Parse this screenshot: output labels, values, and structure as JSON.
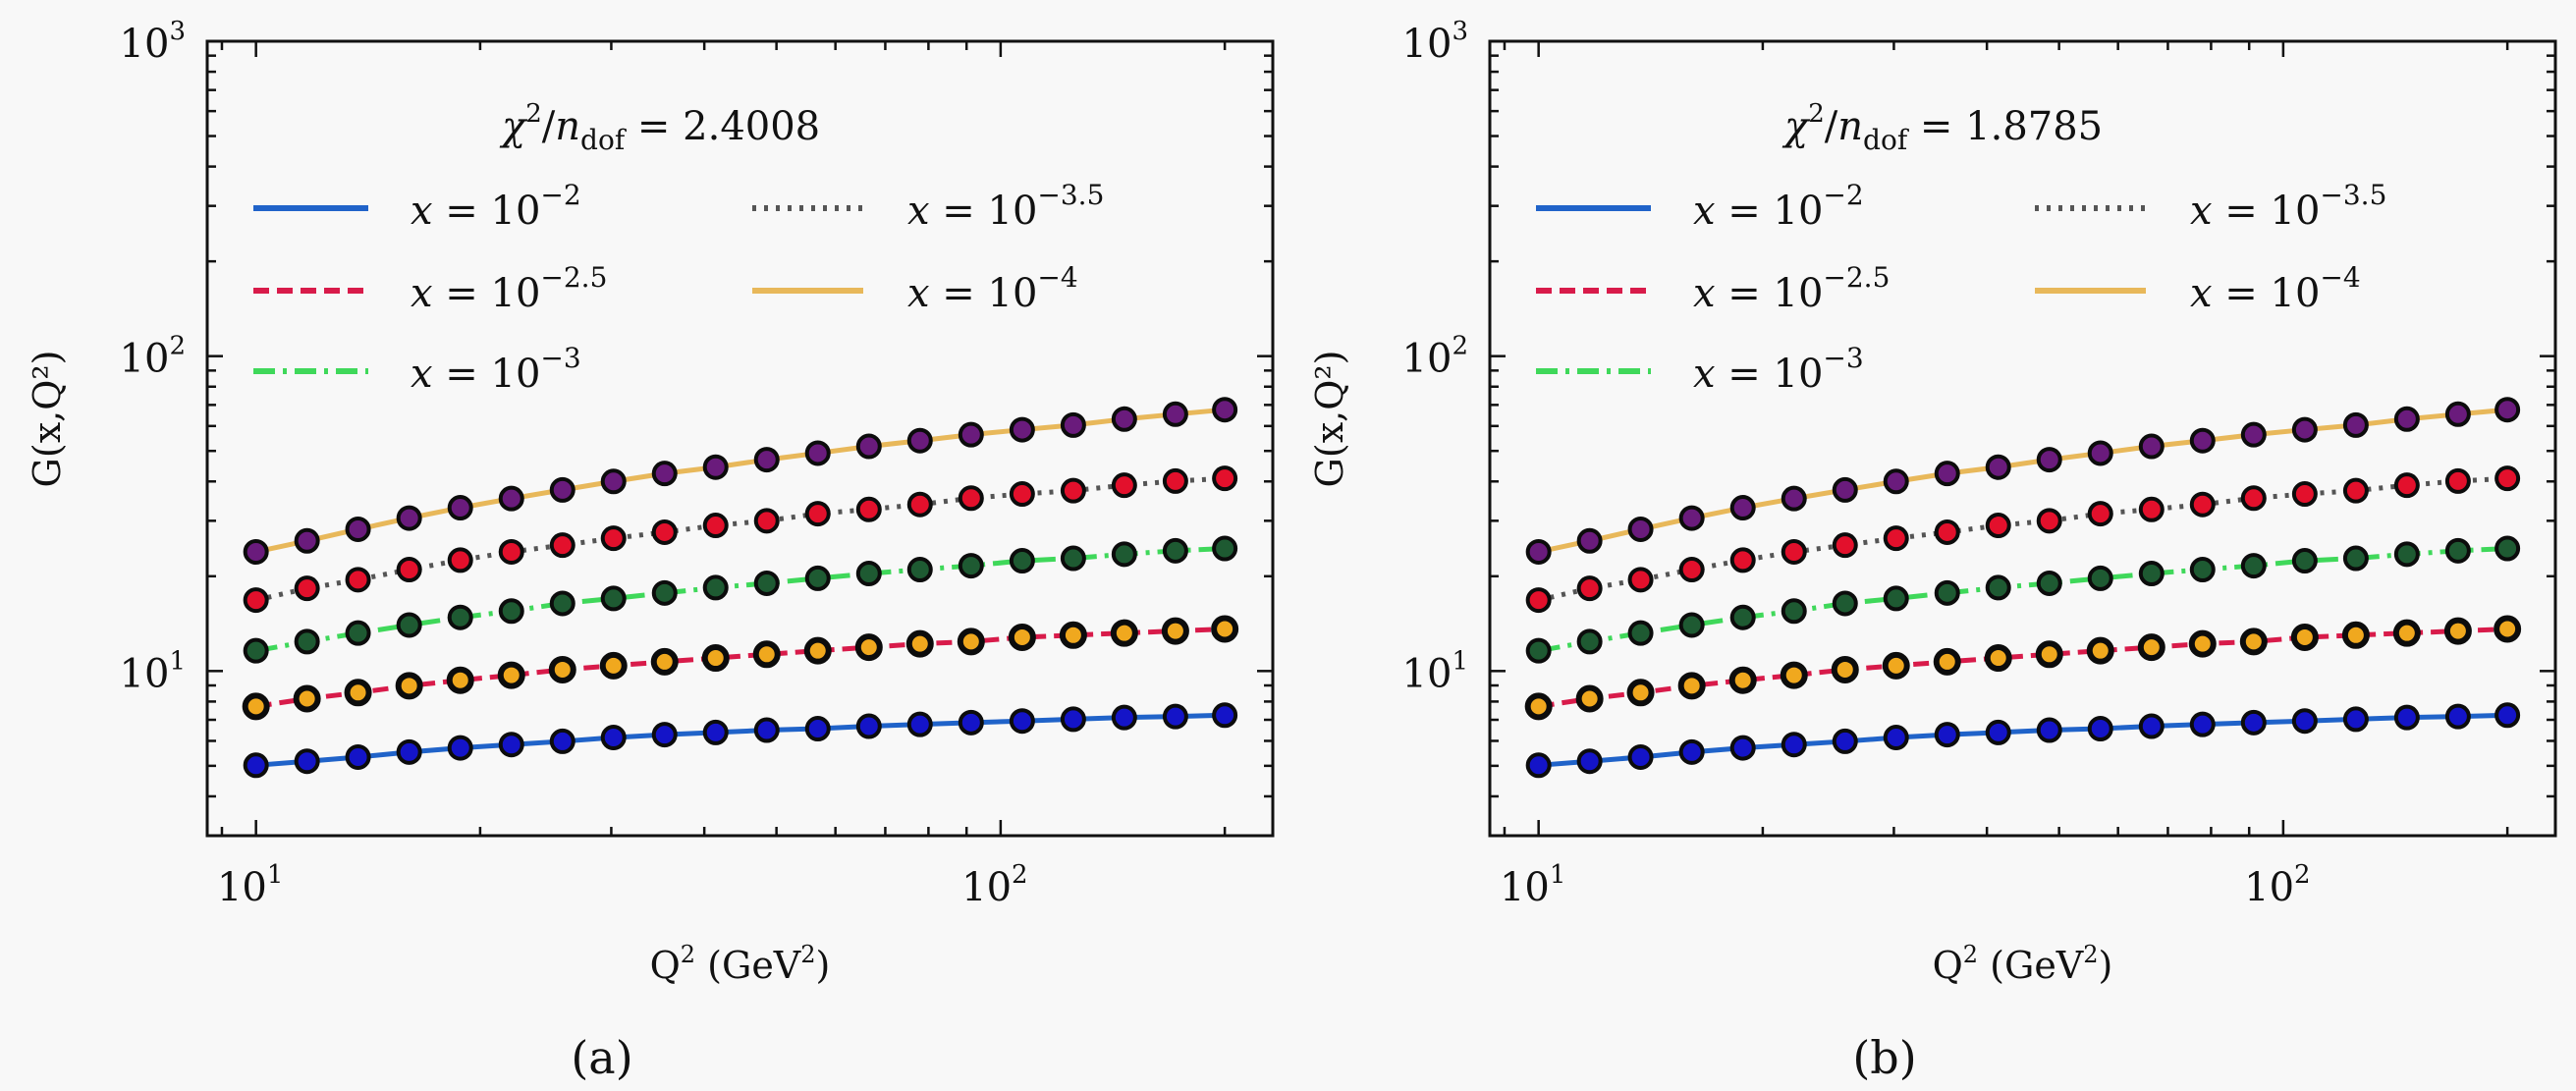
{
  "chart_data": [
    {
      "type": "line",
      "panel_label": "(a)",
      "annotation": {
        "prefix": "χ",
        "sup": "2",
        "slash": "/",
        "n": "n",
        "sub": "dof",
        "eq": " = ",
        "value": "2.4008"
      },
      "xlabel": {
        "base": "Q",
        "sup": "2",
        "unit_open": " (GeV",
        "unit_sup": "2",
        "unit_close": ")"
      },
      "ylabel": "G(x,Q²)",
      "xscale": "log",
      "yscale": "log",
      "xlim": [
        8.6,
        232
      ],
      "ylim": [
        3.0,
        1000
      ],
      "x_ticks": [
        {
          "value": 10,
          "base": "10",
          "exp": "1"
        },
        {
          "value": 100,
          "base": "10",
          "exp": "2"
        }
      ],
      "y_ticks": [
        {
          "value": 10,
          "base": "10",
          "exp": "1"
        },
        {
          "value": 100,
          "base": "10",
          "exp": "2"
        },
        {
          "value": 1000,
          "base": "10",
          "exp": "3"
        }
      ],
      "legend_placement": "upper-left, 2 columns",
      "x": [
        10.0,
        11.71,
        13.71,
        16.06,
        18.81,
        22.03,
        25.8,
        30.21,
        35.38,
        41.43,
        48.52,
        56.82,
        66.55,
        77.93,
        91.27,
        106.9,
        125.2,
        146.6,
        171.7,
        200.0
      ],
      "series": [
        {
          "name": "x = 10^-2",
          "label_base": "x = 10",
          "label_exp": "−2",
          "line_color": "#2063c9",
          "line_style": "solid",
          "marker_face": "#1414c8",
          "values": [
            5.02,
            5.17,
            5.33,
            5.53,
            5.7,
            5.84,
            5.98,
            6.15,
            6.28,
            6.38,
            6.49,
            6.56,
            6.68,
            6.77,
            6.86,
            6.94,
            7.03,
            7.12,
            7.17,
            7.24
          ]
        },
        {
          "name": "x = 10^-2.5",
          "label_base": "x = 10",
          "label_exp": "−2.5",
          "line_color": "#d81b4a",
          "line_style": "dashed",
          "marker_face": "#f0a81e",
          "values": [
            7.72,
            8.17,
            8.54,
            8.98,
            9.35,
            9.7,
            10.1,
            10.4,
            10.7,
            11.0,
            11.3,
            11.6,
            11.9,
            12.2,
            12.4,
            12.8,
            13.0,
            13.2,
            13.4,
            13.6
          ]
        },
        {
          "name": "x = 10^-3",
          "label_base": "x = 10",
          "label_exp": "−3",
          "line_color": "#3fd85a",
          "line_style": "dashdot",
          "marker_face": "#1e5a32",
          "values": [
            11.6,
            12.4,
            13.2,
            14.0,
            14.8,
            15.5,
            16.4,
            17.0,
            17.7,
            18.4,
            19.0,
            19.7,
            20.4,
            21.0,
            21.6,
            22.4,
            22.8,
            23.5,
            24.1,
            24.5
          ]
        },
        {
          "name": "x = 10^-3.5",
          "label_base": "x = 10",
          "label_exp": "−3.5",
          "line_color": "#555555",
          "line_style": "dotted",
          "marker_face": "#e3102c",
          "values": [
            16.8,
            18.3,
            19.5,
            21.0,
            22.5,
            23.9,
            25.1,
            26.4,
            27.6,
            29.0,
            30.0,
            31.6,
            32.6,
            33.8,
            35.4,
            36.5,
            37.4,
            38.9,
            40.1,
            40.9
          ]
        },
        {
          "name": "x = 10^-4",
          "label_base": "x = 10",
          "label_exp": "−4",
          "line_color": "#e8b85a",
          "line_style": "solid",
          "marker_face": "#6a1b7c",
          "values": [
            23.9,
            25.9,
            28.2,
            30.6,
            33.0,
            35.3,
            37.6,
            40.0,
            42.4,
            44.4,
            46.9,
            49.2,
            51.7,
            53.9,
            56.3,
            58.4,
            60.4,
            63.1,
            65.4,
            67.6
          ]
        }
      ]
    },
    {
      "type": "line",
      "panel_label": "(b)",
      "annotation": {
        "prefix": "χ",
        "sup": "2",
        "slash": "/",
        "n": "n",
        "sub": "dof",
        "eq": " = ",
        "value": "1.8785"
      },
      "xlabel": {
        "base": "Q",
        "sup": "2",
        "unit_open": " (GeV",
        "unit_sup": "2",
        "unit_close": ")"
      },
      "ylabel": "G(x,Q²)",
      "xscale": "log",
      "yscale": "log",
      "xlim": [
        8.6,
        232
      ],
      "ylim": [
        3.0,
        1000
      ],
      "x_ticks": [
        {
          "value": 10,
          "base": "10",
          "exp": "1"
        },
        {
          "value": 100,
          "base": "10",
          "exp": "2"
        }
      ],
      "y_ticks": [
        {
          "value": 10,
          "base": "10",
          "exp": "1"
        },
        {
          "value": 100,
          "base": "10",
          "exp": "2"
        },
        {
          "value": 1000,
          "base": "10",
          "exp": "3"
        }
      ],
      "legend_placement": "upper-left, 2 columns",
      "x": [
        10.0,
        11.71,
        13.71,
        16.06,
        18.81,
        22.03,
        25.8,
        30.21,
        35.38,
        41.43,
        48.52,
        56.82,
        66.55,
        77.93,
        91.27,
        106.9,
        125.2,
        146.6,
        171.7,
        200.0
      ],
      "series": [
        {
          "name": "x = 10^-2",
          "label_base": "x = 10",
          "label_exp": "−2",
          "line_color": "#2063c9",
          "line_style": "solid",
          "marker_face": "#1414c8",
          "values": [
            5.02,
            5.17,
            5.33,
            5.53,
            5.7,
            5.84,
            5.98,
            6.15,
            6.28,
            6.38,
            6.49,
            6.56,
            6.68,
            6.77,
            6.86,
            6.94,
            7.03,
            7.12,
            7.17,
            7.24
          ]
        },
        {
          "name": "x = 10^-2.5",
          "label_base": "x = 10",
          "label_exp": "−2.5",
          "line_color": "#d81b4a",
          "line_style": "dashed",
          "marker_face": "#f0a81e",
          "values": [
            7.72,
            8.17,
            8.54,
            8.98,
            9.35,
            9.7,
            10.1,
            10.4,
            10.7,
            11.0,
            11.3,
            11.6,
            11.9,
            12.2,
            12.4,
            12.8,
            13.0,
            13.2,
            13.4,
            13.6
          ]
        },
        {
          "name": "x = 10^-3",
          "label_base": "x = 10",
          "label_exp": "−3",
          "line_color": "#3fd85a",
          "line_style": "dashdot",
          "marker_face": "#1e5a32",
          "values": [
            11.6,
            12.4,
            13.2,
            14.0,
            14.8,
            15.5,
            16.4,
            17.0,
            17.7,
            18.4,
            19.0,
            19.7,
            20.4,
            21.0,
            21.6,
            22.4,
            22.8,
            23.5,
            24.1,
            24.5
          ]
        },
        {
          "name": "x = 10^-3.5",
          "label_base": "x = 10",
          "label_exp": "−3.5",
          "line_color": "#555555",
          "line_style": "dotted",
          "marker_face": "#e3102c",
          "values": [
            16.8,
            18.3,
            19.5,
            21.0,
            22.5,
            23.9,
            25.1,
            26.4,
            27.6,
            29.0,
            30.0,
            31.6,
            32.6,
            33.8,
            35.4,
            36.5,
            37.4,
            38.9,
            40.1,
            40.9
          ]
        },
        {
          "name": "x = 10^-4",
          "label_base": "x = 10",
          "label_exp": "−4",
          "line_color": "#e8b85a",
          "line_style": "solid",
          "marker_face": "#6a1b7c",
          "values": [
            23.9,
            25.9,
            28.2,
            30.6,
            33.0,
            35.3,
            37.6,
            40.0,
            42.4,
            44.4,
            46.9,
            49.2,
            51.7,
            53.9,
            56.3,
            58.4,
            60.4,
            63.1,
            65.4,
            67.6
          ]
        }
      ]
    }
  ]
}
